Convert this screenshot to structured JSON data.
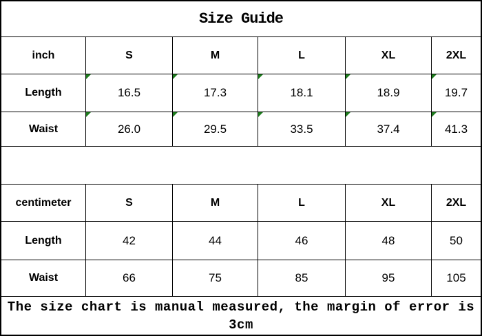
{
  "title": "Size Guide",
  "footer": {
    "note": "The size chart is manual measured, the margin of error is 3cm"
  },
  "colors": {
    "border": "#000000",
    "background": "#ffffff",
    "text": "#000000",
    "flag_green": "#1e7d1e"
  },
  "icons": {
    "error_flag": "triangle-top-left"
  },
  "tables": [
    {
      "unit": "inch",
      "sizes": [
        "S",
        "M",
        "L",
        "XL",
        "2XL"
      ],
      "rows": [
        {
          "label": "Length",
          "values": [
            "16.5",
            "17.3",
            "18.1",
            "18.9",
            "19.7"
          ],
          "flagged": true
        },
        {
          "label": "Waist",
          "values": [
            "26.0",
            "29.5",
            "33.5",
            "37.4",
            "41.3"
          ],
          "flagged": true
        }
      ]
    },
    {
      "unit": "centimeter",
      "sizes": [
        "S",
        "M",
        "L",
        "XL",
        "2XL"
      ],
      "rows": [
        {
          "label": "Length",
          "values": [
            "42",
            "44",
            "46",
            "48",
            "50"
          ],
          "flagged": false
        },
        {
          "label": "Waist",
          "values": [
            "66",
            "75",
            "85",
            "95",
            "105"
          ],
          "flagged": false
        }
      ]
    }
  ]
}
